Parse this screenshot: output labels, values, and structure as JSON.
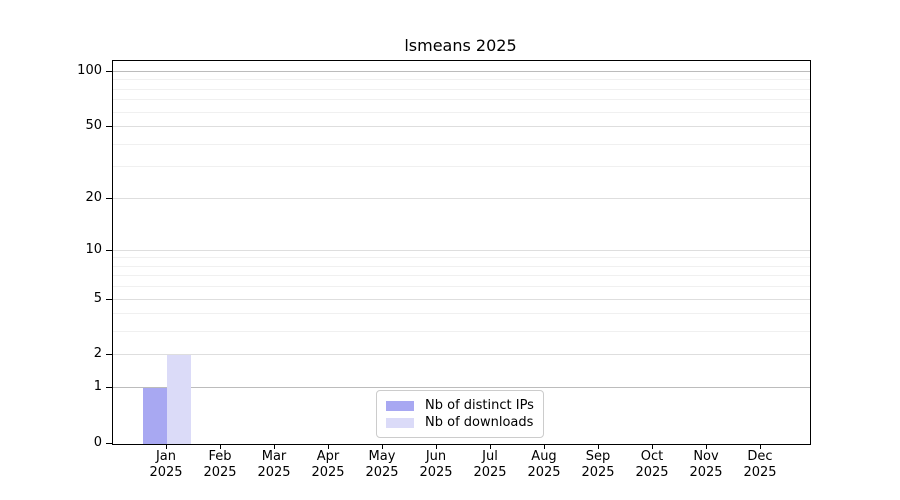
{
  "chart_data": {
    "type": "bar",
    "title": "lsmeans 2025",
    "categories": [
      "Jan",
      "Feb",
      "Mar",
      "Apr",
      "May",
      "Jun",
      "Jul",
      "Aug",
      "Sep",
      "Oct",
      "Nov",
      "Dec"
    ],
    "category_year_label": "2025",
    "series": [
      {
        "name": "Nb of distinct IPs",
        "color": "#a8a8f2",
        "values": [
          1,
          0,
          0,
          0,
          0,
          0,
          0,
          0,
          0,
          0,
          0,
          0
        ]
      },
      {
        "name": "Nb of downloads",
        "color": "#dbdbf8",
        "values": [
          2,
          0,
          0,
          0,
          0,
          0,
          0,
          0,
          0,
          0,
          0,
          0
        ]
      }
    ],
    "yaxis": {
      "scale": "log1p",
      "ticks": [
        0,
        1,
        2,
        5,
        10,
        20,
        50,
        100
      ],
      "minor_ticks": [
        3,
        4,
        6,
        7,
        8,
        9,
        30,
        40,
        60,
        70,
        80,
        90
      ],
      "emphasized_gridlines": [
        1,
        100
      ],
      "ylim": [
        0,
        115
      ]
    },
    "xaxis": {
      "tick_style": "month-over-year"
    },
    "legend": {
      "position": "bottom-center"
    },
    "style": {
      "grid_emphasized_color": "#bcbcbc",
      "grid_labeled_color": "#dedede",
      "grid_minor_color": "#f0f0f0",
      "spine_color": "#000000",
      "background_color": "#ffffff",
      "text_color": "#000000"
    }
  }
}
